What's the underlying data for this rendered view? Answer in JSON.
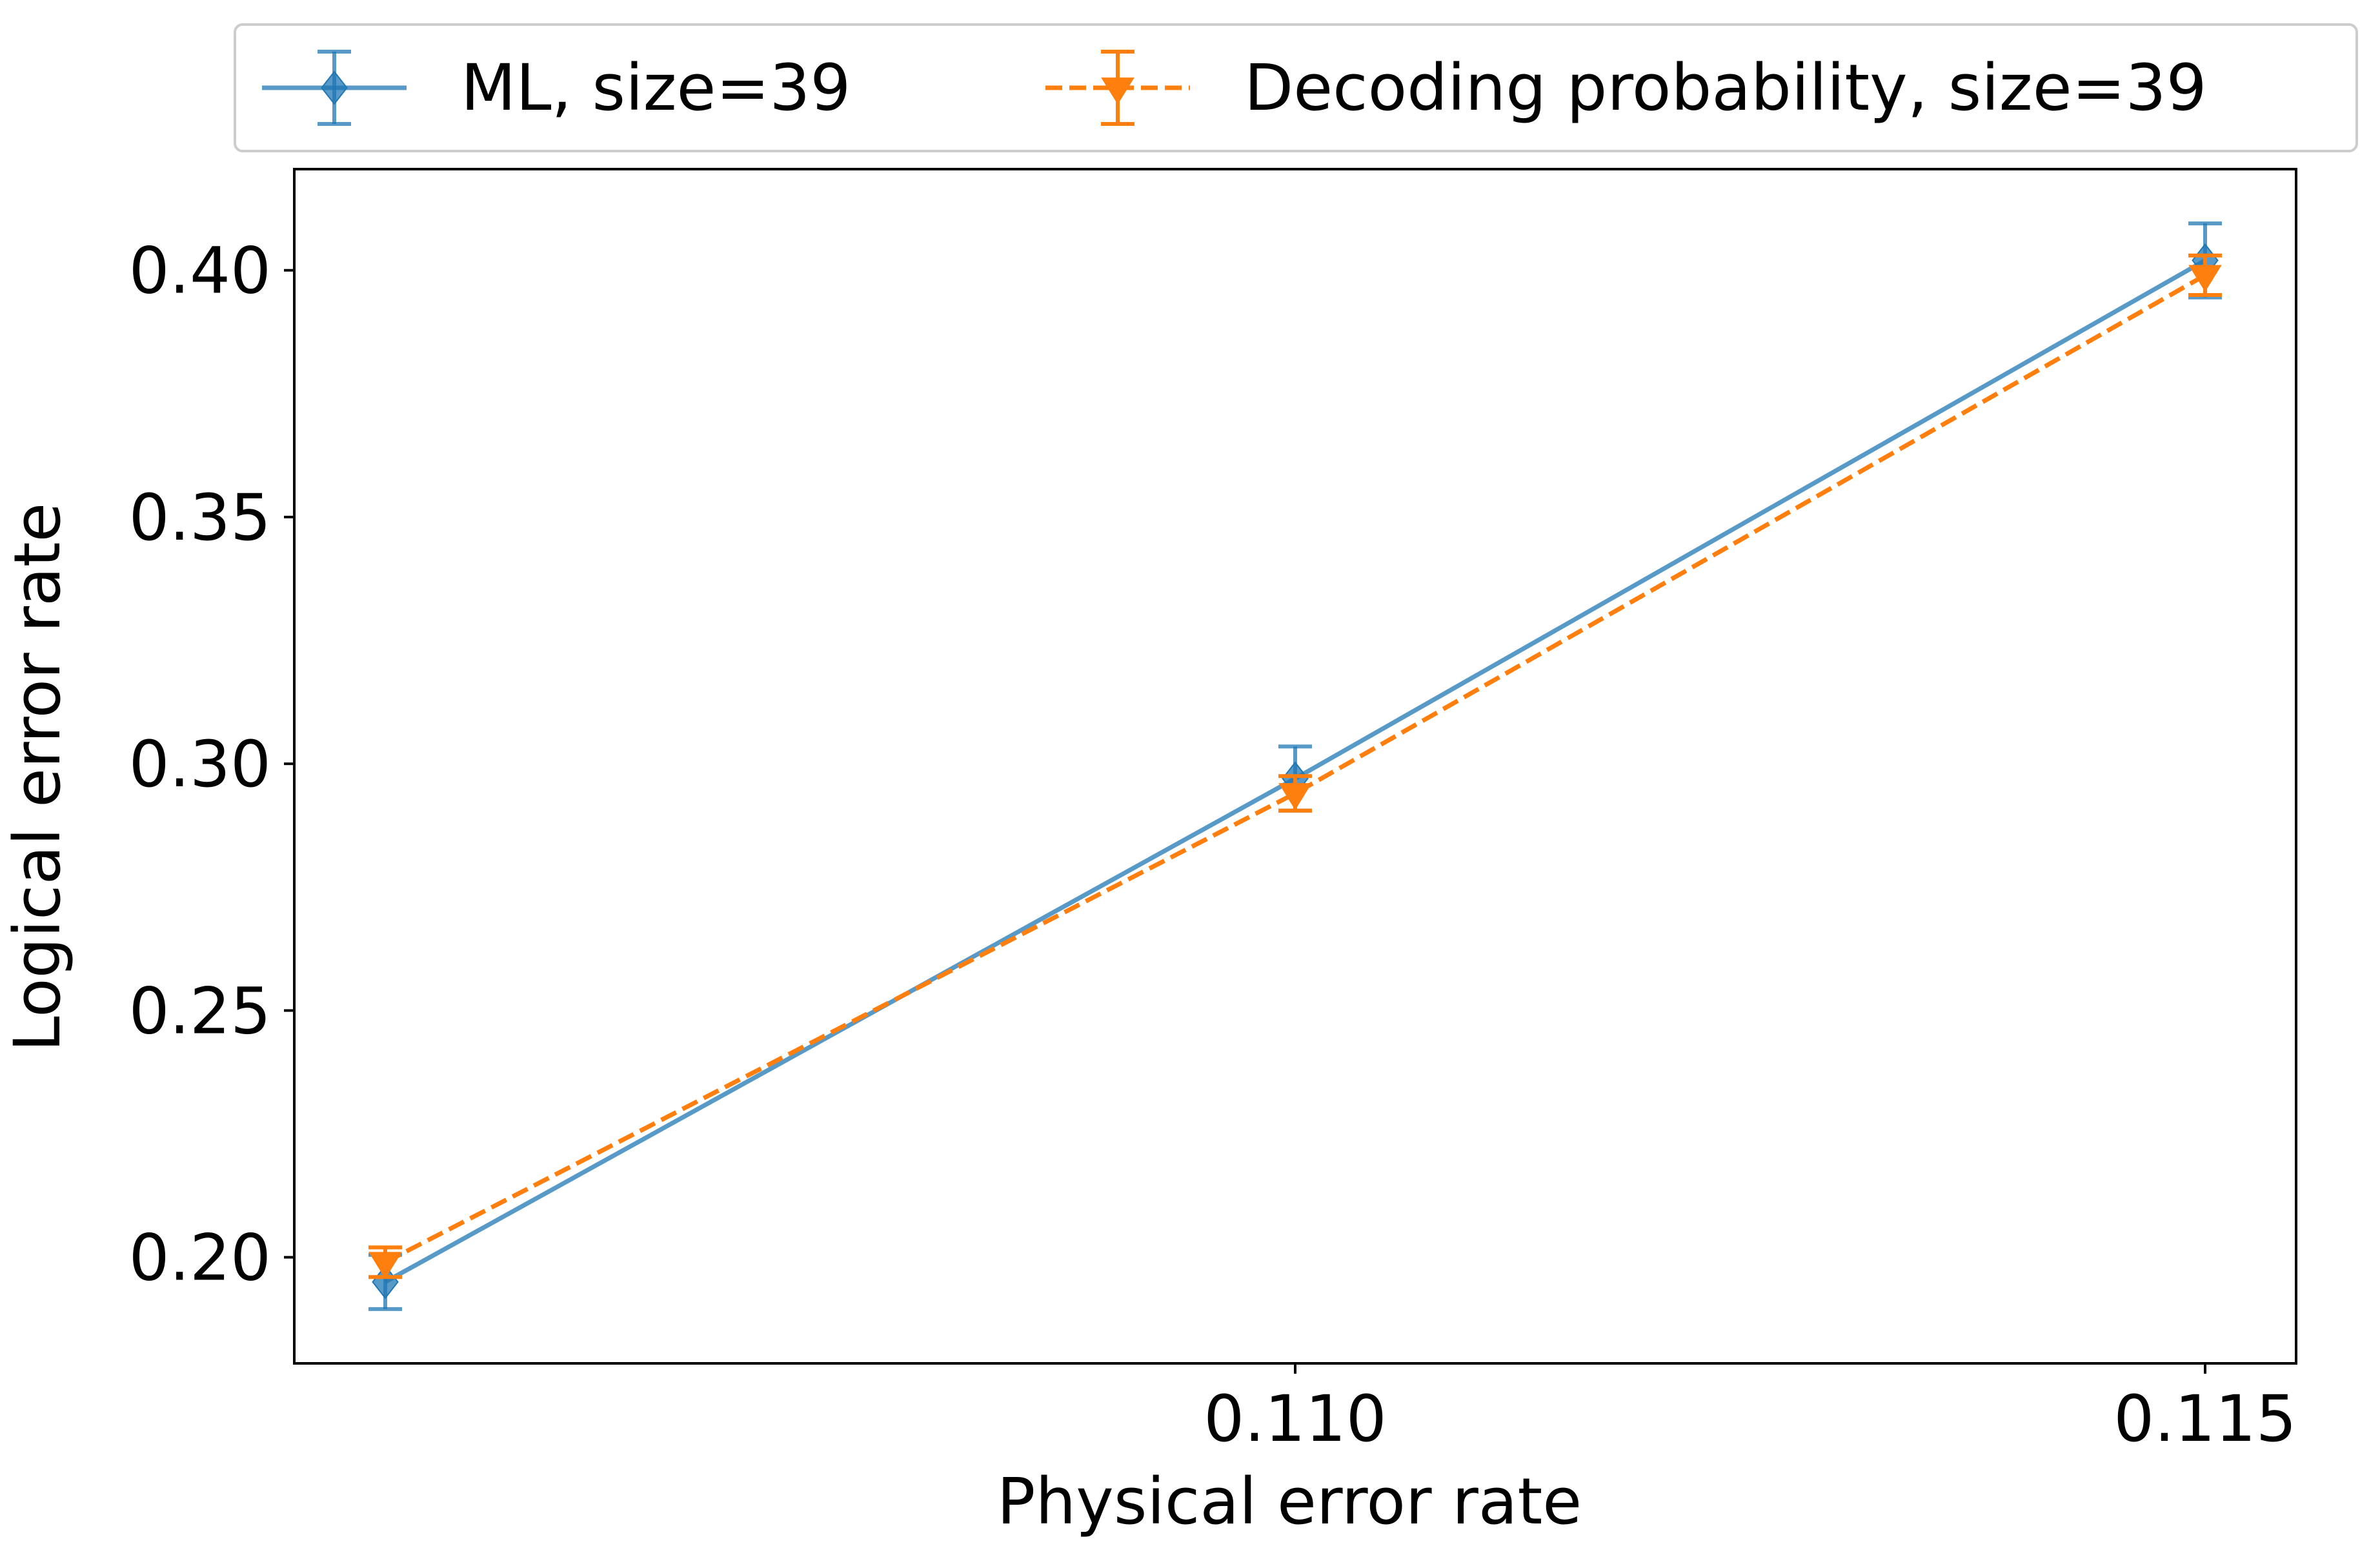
{
  "chart_data": {
    "type": "line",
    "title": "",
    "xlabel": "Physical error rate",
    "ylabel": "Logical error rate",
    "xlim": [
      0.1045,
      0.1155
    ],
    "ylim": [
      0.1785,
      0.4205
    ],
    "x_ticks": [
      0.11,
      0.115
    ],
    "x_tick_labels": [
      "0.110",
      "0.115"
    ],
    "y_ticks": [
      0.2,
      0.25,
      0.3,
      0.35,
      0.4
    ],
    "y_tick_labels": [
      "0.20",
      "0.25",
      "0.30",
      "0.35",
      "0.40"
    ],
    "grid": false,
    "legend_position": "top",
    "series": [
      {
        "name": "ML, size=39",
        "color": "#1f77b4",
        "line_style": "solid",
        "marker": "diamond",
        "x": [
          0.105,
          0.11,
          0.115
        ],
        "y": [
          0.195,
          0.297,
          0.402
        ],
        "error": [
          0.0055,
          0.0065,
          0.0075
        ]
      },
      {
        "name": "Decoding probability, size=39",
        "color": "#ff7f0e",
        "line_style": "dashed",
        "marker": "triangle-down",
        "x": [
          0.105,
          0.11,
          0.115
        ],
        "y": [
          0.199,
          0.294,
          0.399
        ],
        "error": [
          0.003,
          0.0035,
          0.004
        ]
      }
    ]
  }
}
